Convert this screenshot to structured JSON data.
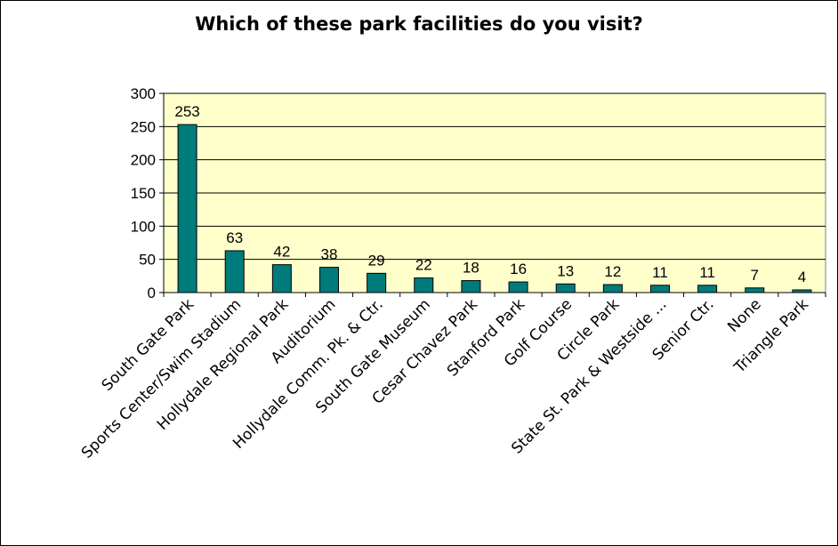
{
  "chart_data": {
    "type": "bar",
    "title": "Which of these park facilities do you visit?",
    "xlabel": "",
    "ylabel": "",
    "ylim": [
      0,
      300
    ],
    "yticks": [
      0,
      50,
      100,
      150,
      200,
      250,
      300
    ],
    "grid": true,
    "legend": "none",
    "colors": {
      "bar": "#007b7b",
      "bar_edge": "#000000",
      "plot_background": "#ffffcc",
      "gridline": "#000000"
    },
    "categories": [
      "South Gate Park",
      "Sports Center/Swim Stadium",
      "Hollydale Regional Park",
      "Auditorium",
      "Hollydale Comm. Pk. & Ctr.",
      "South Gate Museum",
      "Cesar Chavez Park",
      "Stanford Park",
      "Golf Course",
      "Circle Park",
      "State St. Park & Westside ...",
      "Senior Ctr.",
      "None",
      "Triangle Park"
    ],
    "values": [
      253,
      63,
      42,
      38,
      29,
      22,
      18,
      16,
      13,
      12,
      11,
      11,
      7,
      4
    ]
  }
}
